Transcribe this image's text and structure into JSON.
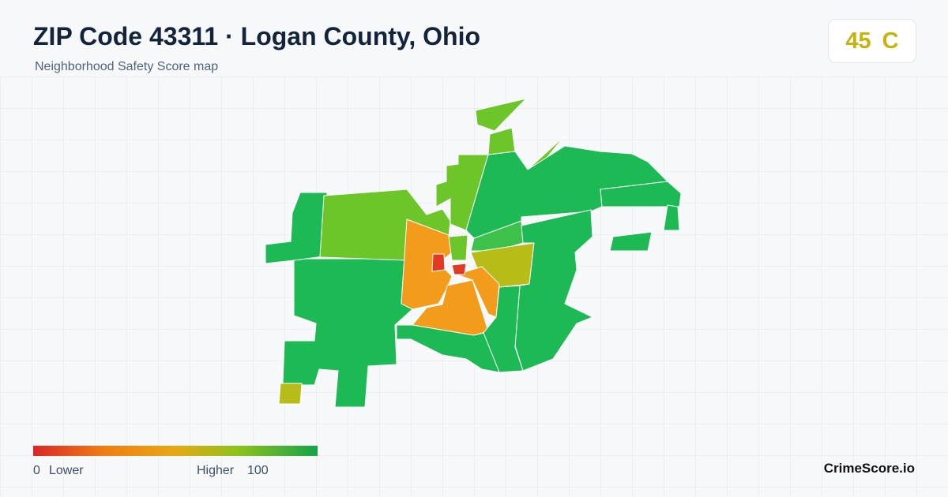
{
  "header": {
    "title": "ZIP Code 43311 · Logan County, Ohio",
    "subtitle": "Neighborhood Safety Score map"
  },
  "score": {
    "value": 45,
    "grade": "C"
  },
  "legend": {
    "min": 0,
    "min_label": "Lower",
    "max_label": "Higher",
    "max": 100
  },
  "brand": "CrimeScore.io"
}
